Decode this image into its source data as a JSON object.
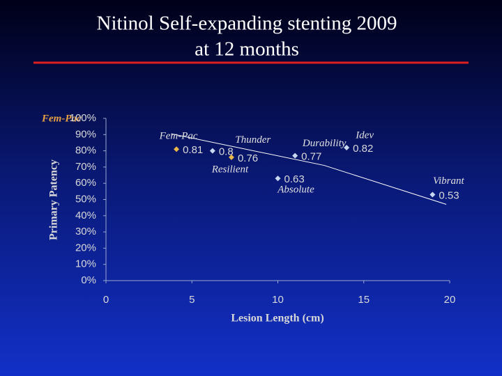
{
  "chart_data": {
    "type": "scatter",
    "title": "Nitinol Self-expanding stenting 2009",
    "subtitle": "at 12 months",
    "xlabel": "Lesion Length (cm)",
    "ylabel": "Primary Patency",
    "annotation": "Fem-Pac",
    "xlim": [
      0,
      20
    ],
    "xticks": [
      0,
      5,
      10,
      15,
      20
    ],
    "ylim": [
      0,
      100
    ],
    "yticks": [
      {
        "value": 0,
        "label": "0%"
      },
      {
        "value": 10,
        "label": "10%"
      },
      {
        "value": 20,
        "label": "20%"
      },
      {
        "value": 30,
        "label": "30%"
      },
      {
        "value": 40,
        "label": "40%"
      },
      {
        "value": 50,
        "label": "50%"
      },
      {
        "value": 60,
        "label": "60%"
      },
      {
        "value": 70,
        "label": "70%"
      },
      {
        "value": 80,
        "label": "80%"
      },
      {
        "value": 90,
        "label": "90%"
      },
      {
        "value": 100,
        "label": "100%"
      }
    ],
    "points": {
      "names": [
        "Fem-Pac",
        "Thunder",
        "Resilient",
        "Absolute",
        "Durability",
        "Idev",
        "Vibrant"
      ],
      "x": [
        4.1,
        6.2,
        7.3,
        10.0,
        11.0,
        14.0,
        19.0
      ],
      "values": [
        81,
        80,
        76,
        63,
        77,
        82,
        53
      ],
      "value_labels": [
        "0.81",
        "0.8",
        "0.76",
        "0.63",
        "0.77",
        "0.82",
        "0.53"
      ],
      "colors": [
        "#e8b84a",
        "#c8d8f0",
        "#e8b84a",
        "#c8d8f0",
        "#c8d8f0",
        "#c8d8f0",
        "#c8d8f0"
      ]
    },
    "trendline": {
      "x": [
        3.8,
        12.7,
        19.8
      ],
      "values": [
        90.5,
        71,
        47
      ],
      "color": "#ffffff"
    }
  }
}
